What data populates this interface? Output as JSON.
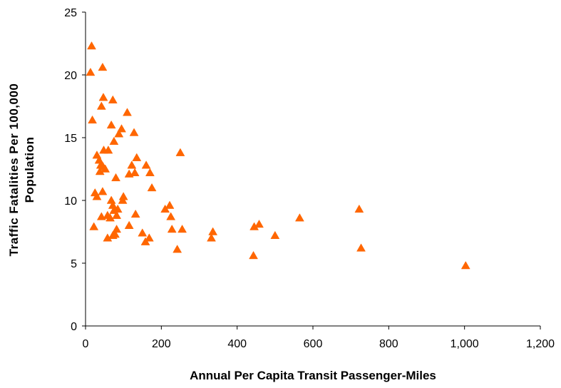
{
  "chart_data": {
    "type": "scatter",
    "xlabel": "Annual Per Capita Transit Passenger-Miles",
    "ylabel_lines": [
      "Traffic Fatalities Per 100,000",
      "Population"
    ],
    "xlim": [
      0,
      1200
    ],
    "ylim": [
      0,
      25
    ],
    "x_ticks": [
      0,
      200,
      400,
      600,
      800,
      1000,
      1200
    ],
    "x_tick_labels": [
      "0",
      "200",
      "400",
      "600",
      "800",
      "1,000",
      "1,200"
    ],
    "y_ticks": [
      0,
      5,
      10,
      15,
      20,
      25
    ],
    "y_tick_labels": [
      "0",
      "5",
      "10",
      "15",
      "20",
      "25"
    ],
    "grid": false,
    "marker": "triangle",
    "color": "#ff6600",
    "points": [
      {
        "x": 16,
        "y": 22.3
      },
      {
        "x": 13,
        "y": 20.2
      },
      {
        "x": 45,
        "y": 20.6
      },
      {
        "x": 18,
        "y": 16.4
      },
      {
        "x": 47,
        "y": 18.2
      },
      {
        "x": 42,
        "y": 17.5
      },
      {
        "x": 72,
        "y": 18.0
      },
      {
        "x": 110,
        "y": 17.0
      },
      {
        "x": 68,
        "y": 16.0
      },
      {
        "x": 95,
        "y": 15.7
      },
      {
        "x": 88,
        "y": 15.3
      },
      {
        "x": 128,
        "y": 15.4
      },
      {
        "x": 60,
        "y": 14.0
      },
      {
        "x": 75,
        "y": 14.7
      },
      {
        "x": 48,
        "y": 14.0
      },
      {
        "x": 30,
        "y": 13.6
      },
      {
        "x": 36,
        "y": 13.2
      },
      {
        "x": 40,
        "y": 12.8
      },
      {
        "x": 38,
        "y": 12.3
      },
      {
        "x": 46,
        "y": 12.7
      },
      {
        "x": 52,
        "y": 12.5
      },
      {
        "x": 135,
        "y": 13.4
      },
      {
        "x": 122,
        "y": 12.8
      },
      {
        "x": 115,
        "y": 12.1
      },
      {
        "x": 130,
        "y": 12.2
      },
      {
        "x": 160,
        "y": 12.8
      },
      {
        "x": 170,
        "y": 12.2
      },
      {
        "x": 80,
        "y": 11.8
      },
      {
        "x": 250,
        "y": 13.8
      },
      {
        "x": 175,
        "y": 11.0
      },
      {
        "x": 25,
        "y": 10.6
      },
      {
        "x": 30,
        "y": 10.3
      },
      {
        "x": 45,
        "y": 10.7
      },
      {
        "x": 100,
        "y": 10.3
      },
      {
        "x": 98,
        "y": 10.0
      },
      {
        "x": 68,
        "y": 10.0
      },
      {
        "x": 72,
        "y": 9.6
      },
      {
        "x": 75,
        "y": 9.2
      },
      {
        "x": 85,
        "y": 9.3
      },
      {
        "x": 210,
        "y": 9.3
      },
      {
        "x": 222,
        "y": 9.6
      },
      {
        "x": 225,
        "y": 8.7
      },
      {
        "x": 42,
        "y": 8.7
      },
      {
        "x": 58,
        "y": 8.8
      },
      {
        "x": 65,
        "y": 8.6
      },
      {
        "x": 82,
        "y": 8.8
      },
      {
        "x": 132,
        "y": 8.9
      },
      {
        "x": 22,
        "y": 7.9
      },
      {
        "x": 58,
        "y": 7.0
      },
      {
        "x": 72,
        "y": 7.2
      },
      {
        "x": 78,
        "y": 7.3
      },
      {
        "x": 82,
        "y": 7.7
      },
      {
        "x": 115,
        "y": 8.0
      },
      {
        "x": 150,
        "y": 7.4
      },
      {
        "x": 158,
        "y": 6.7
      },
      {
        "x": 168,
        "y": 7.0
      },
      {
        "x": 228,
        "y": 7.7
      },
      {
        "x": 255,
        "y": 7.7
      },
      {
        "x": 242,
        "y": 6.1
      },
      {
        "x": 332,
        "y": 7.0
      },
      {
        "x": 336,
        "y": 7.5
      },
      {
        "x": 445,
        "y": 7.9
      },
      {
        "x": 458,
        "y": 8.1
      },
      {
        "x": 500,
        "y": 7.2
      },
      {
        "x": 565,
        "y": 8.6
      },
      {
        "x": 443,
        "y": 5.6
      },
      {
        "x": 722,
        "y": 9.3
      },
      {
        "x": 727,
        "y": 6.2
      },
      {
        "x": 1003,
        "y": 4.8
      }
    ]
  }
}
